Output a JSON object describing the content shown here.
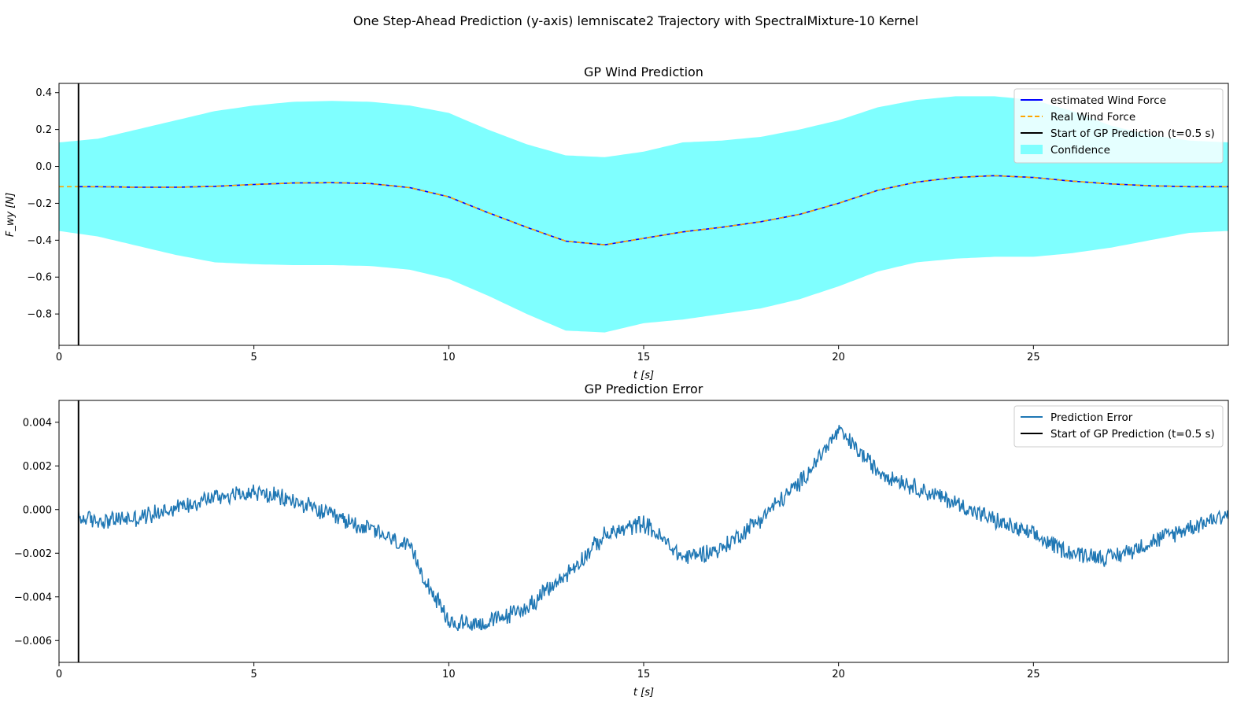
{
  "figure": {
    "suptitle": "One Step-Ahead Prediction (y-axis) lemniscate2 Trajectory with SpectralMixture-10 Kernel"
  },
  "colors": {
    "estimated": "#0000ff",
    "real": "#ffa500",
    "start_line": "#000000",
    "confidence": "#7fffff",
    "error": "#1f77b4"
  },
  "chart_data": [
    {
      "type": "line",
      "title": "GP Wind Prediction",
      "xlabel": "t [s]",
      "ylabel": "F_wy [N]",
      "xlim": [
        0,
        30
      ],
      "ylim": [
        -0.97,
        0.45
      ],
      "xticks": [
        0,
        5,
        10,
        15,
        20,
        25
      ],
      "xtick_labels": [
        "0",
        "5",
        "10",
        "15",
        "20",
        "25"
      ],
      "yticks": [
        0.4,
        0.2,
        0.0,
        -0.2,
        -0.4,
        -0.6,
        -0.8
      ],
      "ytick_labels": [
        "0.4",
        "0.2",
        "0.0",
        "−0.2",
        "−0.4",
        "−0.6",
        "−0.8"
      ],
      "legend_position": "top-right",
      "vline_x": 0.5,
      "legend": [
        {
          "label": "estimated Wind Force",
          "kind": "line",
          "color": "#0000ff"
        },
        {
          "label": "Real Wind Force",
          "kind": "dashed",
          "color": "#ffa500"
        },
        {
          "label": "Start of GP Prediction (t=0.5 s)",
          "kind": "line",
          "color": "#000000"
        },
        {
          "label": "Confidence",
          "kind": "patch",
          "color": "#7fffff"
        }
      ],
      "x": [
        0,
        1,
        2,
        3,
        4,
        5,
        6,
        7,
        8,
        9,
        10,
        11,
        12,
        13,
        14,
        15,
        16,
        17,
        18,
        19,
        20,
        21,
        22,
        23,
        24,
        25,
        26,
        27,
        28,
        29,
        30
      ],
      "series": [
        {
          "name": "estimated Wind Force",
          "values": [
            -0.11,
            -0.11,
            -0.113,
            -0.113,
            -0.108,
            -0.098,
            -0.09,
            -0.088,
            -0.093,
            -0.115,
            -0.165,
            -0.25,
            -0.33,
            -0.405,
            -0.425,
            -0.39,
            -0.355,
            -0.33,
            -0.3,
            -0.26,
            -0.2,
            -0.13,
            -0.085,
            -0.06,
            -0.05,
            -0.06,
            -0.08,
            -0.095,
            -0.105,
            -0.11,
            -0.11
          ]
        },
        {
          "name": "Real Wind Force",
          "values": [
            -0.11,
            -0.11,
            -0.113,
            -0.113,
            -0.108,
            -0.098,
            -0.09,
            -0.088,
            -0.093,
            -0.115,
            -0.165,
            -0.25,
            -0.33,
            -0.405,
            -0.425,
            -0.39,
            -0.355,
            -0.33,
            -0.3,
            -0.26,
            -0.2,
            -0.13,
            -0.085,
            -0.06,
            -0.05,
            -0.06,
            -0.08,
            -0.095,
            -0.105,
            -0.11,
            -0.11
          ]
        }
      ],
      "confidence_upper": [
        0.13,
        0.15,
        0.2,
        0.25,
        0.3,
        0.33,
        0.35,
        0.355,
        0.35,
        0.33,
        0.29,
        0.2,
        0.12,
        0.06,
        0.05,
        0.08,
        0.13,
        0.14,
        0.16,
        0.2,
        0.25,
        0.32,
        0.36,
        0.38,
        0.38,
        0.36,
        0.3,
        0.22,
        0.17,
        0.14,
        0.13
      ],
      "confidence_lower": [
        -0.35,
        -0.38,
        -0.43,
        -0.48,
        -0.52,
        -0.53,
        -0.535,
        -0.535,
        -0.54,
        -0.56,
        -0.61,
        -0.7,
        -0.8,
        -0.89,
        -0.9,
        -0.85,
        -0.83,
        -0.8,
        -0.77,
        -0.72,
        -0.65,
        -0.57,
        -0.52,
        -0.5,
        -0.49,
        -0.49,
        -0.47,
        -0.44,
        -0.4,
        -0.36,
        -0.35
      ]
    },
    {
      "type": "line",
      "title": "GP Prediction Error",
      "xlabel": "t [s]",
      "ylabel": "",
      "xlim": [
        0,
        30
      ],
      "ylim": [
        -0.007,
        0.005
      ],
      "xticks": [
        0,
        5,
        10,
        15,
        20,
        25
      ],
      "xtick_labels": [
        "0",
        "5",
        "10",
        "15",
        "20",
        "25"
      ],
      "yticks": [
        0.004,
        0.002,
        0.0,
        -0.002,
        -0.004,
        -0.006
      ],
      "ytick_labels": [
        "0.004",
        "0.002",
        "0.000",
        "−0.002",
        "−0.004",
        "−0.006"
      ],
      "legend_position": "top-right",
      "vline_x": 0.5,
      "legend": [
        {
          "label": "Prediction Error",
          "kind": "line",
          "color": "#1f77b4"
        },
        {
          "label": "Start of GP Prediction (t=0.5 s)",
          "kind": "line",
          "color": "#000000"
        }
      ],
      "noise_amplitude": 0.0004,
      "x": [
        0.5,
        1,
        2,
        3,
        4,
        5,
        6,
        7,
        8,
        9,
        10,
        11,
        12,
        13,
        14,
        15,
        16,
        17,
        18,
        19,
        20,
        21,
        22,
        23,
        24,
        25,
        26,
        27,
        28,
        29,
        30
      ],
      "series": [
        {
          "name": "Prediction Error",
          "values": [
            -0.0004,
            -0.0005,
            -0.0004,
            0.0001,
            0.0006,
            0.0008,
            0.0004,
            -0.0003,
            -0.0009,
            -0.0018,
            -0.0052,
            -0.0052,
            -0.0045,
            -0.003,
            -0.0012,
            -0.0006,
            -0.0022,
            -0.0018,
            -0.0004,
            0.0012,
            0.0036,
            0.0018,
            0.001,
            0.0003,
            -0.0005,
            -0.0012,
            -0.002,
            -0.0022,
            -0.0015,
            -0.0008,
            -0.0002
          ]
        }
      ]
    }
  ]
}
